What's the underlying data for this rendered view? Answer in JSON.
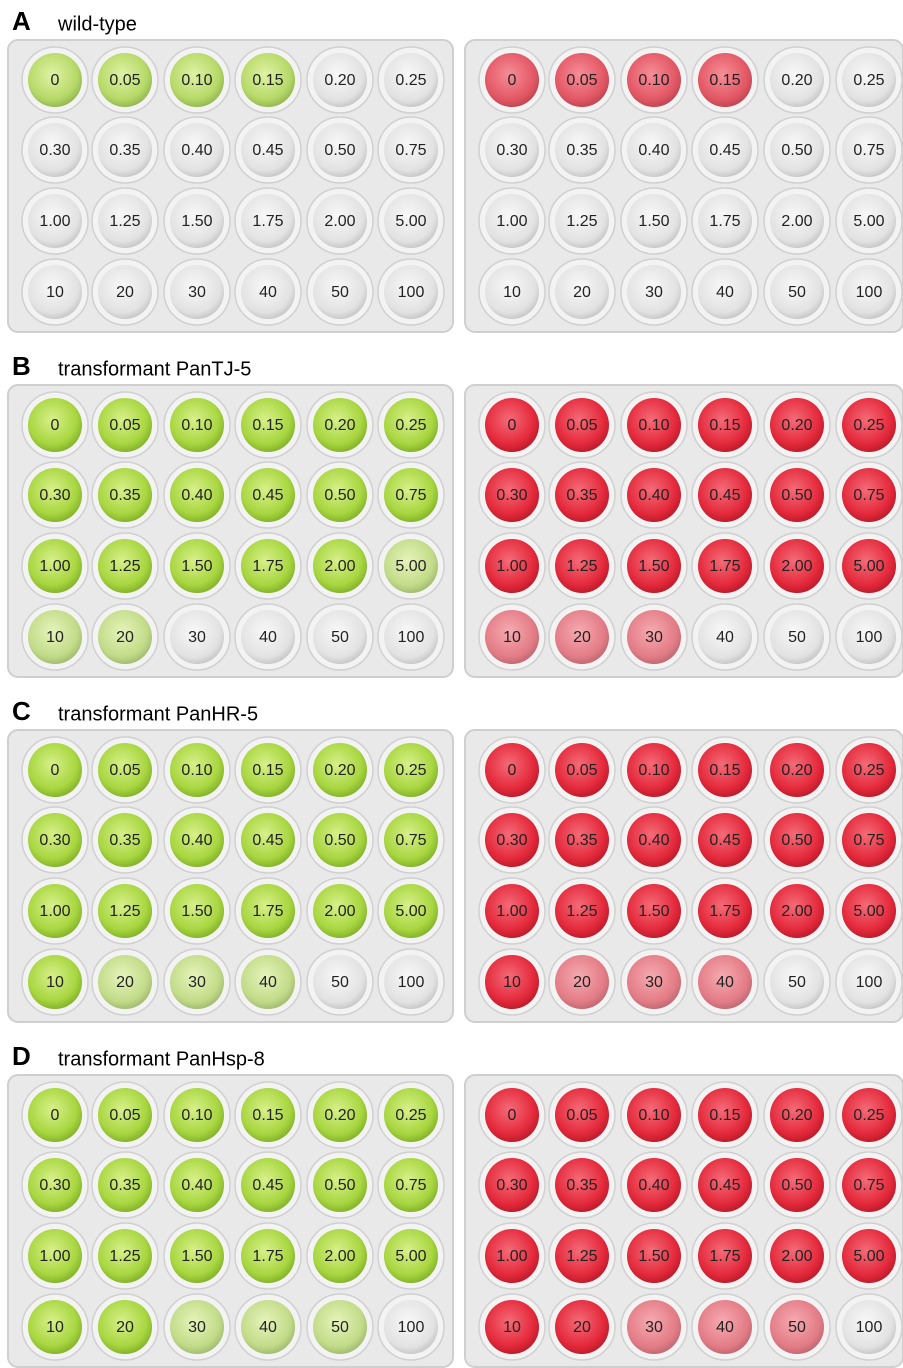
{
  "panels": [
    {
      "letter": "A",
      "title": "wild-type"
    },
    {
      "letter": "B",
      "title": "transformant PanTJ-5"
    },
    {
      "letter": "C",
      "title": "transformant PanHR-5"
    },
    {
      "letter": "D",
      "title": "transformant PanHsp-8"
    }
  ],
  "concentrations": [
    "0",
    "0.05",
    "0.10",
    "0.15",
    "0.20",
    "0.25",
    "0.30",
    "0.35",
    "0.40",
    "0.45",
    "0.50",
    "0.75",
    "1.00",
    "1.25",
    "1.50",
    "1.75",
    "2.00",
    "5.00",
    "10",
    "20",
    "30",
    "40",
    "50",
    "100"
  ]
}
